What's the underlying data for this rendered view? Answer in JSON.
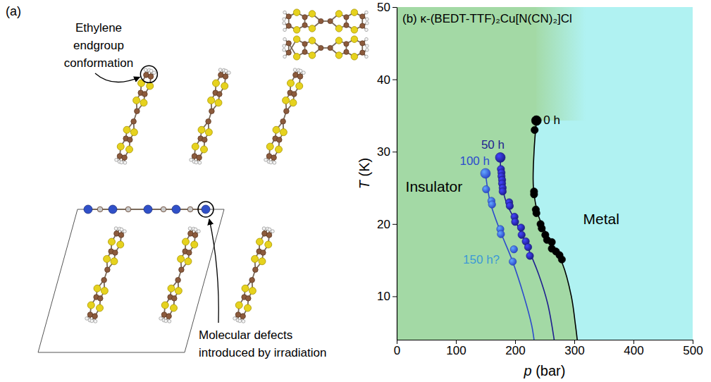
{
  "diagram": {
    "label": "(a)",
    "callouts": [
      {
        "lines": [
          "Ethylene",
          "endgroup",
          "conformation"
        ]
      },
      {
        "lines": [
          "Molecular defects",
          "introduced by irradiation"
        ]
      }
    ]
  },
  "chart_data": {
    "type": "scatter",
    "title": "(b) κ-(BEDT-TTF)₂Cu[N(CN)₂]Cl",
    "x_label": "p (bar)",
    "y_label": "T (K)",
    "xlim": [
      0,
      500
    ],
    "xticks": [
      0,
      100,
      200,
      300,
      400,
      500
    ],
    "ylim": [
      4,
      50
    ],
    "yticks": [
      10,
      20,
      30,
      40,
      50
    ],
    "regions": [
      {
        "label": "Insulator",
        "color": "#a3d9a5",
        "x": 15,
        "y": 24.5
      },
      {
        "label": "Metal",
        "color": "#b0f2f2",
        "x": 315,
        "y": 20
      }
    ],
    "series": [
      {
        "name": "0 h",
        "color": "#000000",
        "marker": "circle",
        "x": [
          236,
          233,
          232,
          232,
          235,
          236,
          243,
          245,
          251,
          254,
          262,
          262,
          269,
          275,
          279
        ],
        "values": [
          34.3,
          33,
          24.5,
          24.1,
          22,
          21.5,
          20,
          19.4,
          18.5,
          17.8,
          17.5,
          16.6,
          16.2,
          15.7,
          15.1
        ],
        "curve_x": [
          236,
          232,
          231,
          240,
          260,
          280,
          295,
          302,
          305
        ],
        "curve_values": [
          34.3,
          30,
          25,
          21,
          17.5,
          14.5,
          10,
          6,
          4
        ]
      },
      {
        "name": "50 h",
        "color": "#1f1f8f",
        "marker": "circle",
        "x": [
          175,
          176,
          177,
          177,
          178,
          178,
          179,
          179,
          190,
          191,
          199,
          200,
          210,
          211,
          218,
          222,
          225
        ],
        "values": [
          29.2,
          27.6,
          27.1,
          26.6,
          26.1,
          25.6,
          25,
          24.5,
          23,
          22.5,
          21,
          20.3,
          19.5,
          18.5,
          17.6,
          16.8,
          15.6
        ],
        "curve_x": [
          175,
          177,
          185,
          200,
          220,
          240,
          255,
          266
        ],
        "curve_values": [
          29.2,
          26,
          23,
          20.5,
          17,
          13,
          9,
          4
        ]
      },
      {
        "name": "100 h",
        "color": "#2d4ccc",
        "marker": "circle",
        "x": [
          150,
          151,
          160,
          161,
          175,
          176,
          198,
          196
        ],
        "values": [
          27,
          24.8,
          23.2,
          22.7,
          19.3,
          18.6,
          16.5,
          14.8
        ],
        "curve_x": [
          150,
          158,
          175,
          195,
          215,
          228,
          232
        ],
        "curve_values": [
          27,
          23,
          19,
          15,
          10,
          6,
          4
        ]
      }
    ],
    "annotations": [
      {
        "text": "150 h?",
        "x": 112,
        "y": 14.5,
        "color": "#3c9ad6"
      }
    ]
  }
}
